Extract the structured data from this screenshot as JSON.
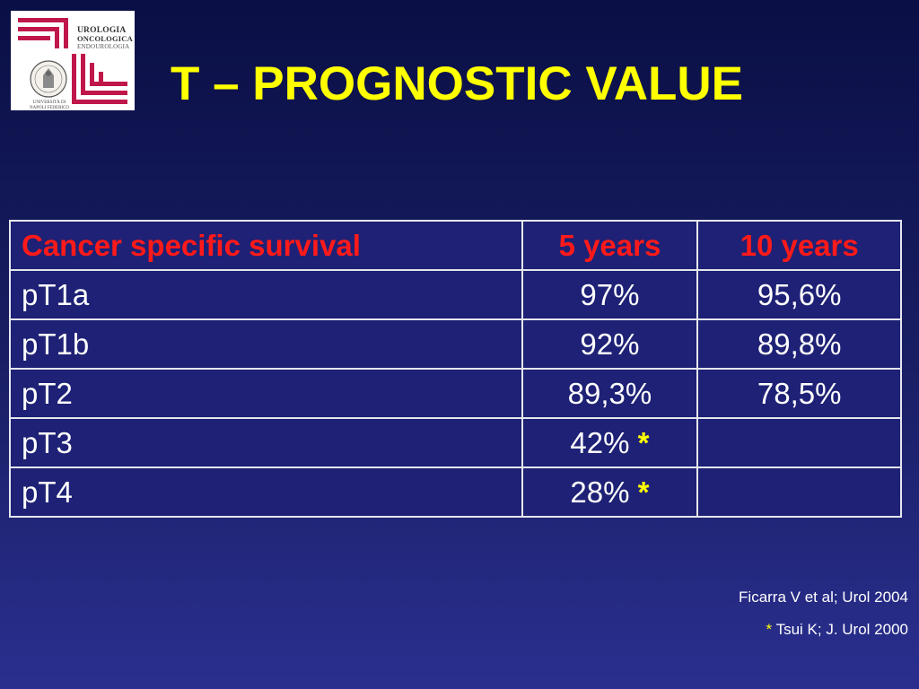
{
  "logo": {
    "line1": "UROLOGIA",
    "line2": "ONCOLOGICA",
    "line3": "ENDOUROLOGIA",
    "seal_caption": "UNIVERSITÀ DI NAPOLI FEDERICO II",
    "brand_color": "#c0174a"
  },
  "title": "T – PROGNOSTIC VALUE",
  "table": {
    "headers": [
      "Cancer specific survival",
      "5 years",
      "10 years"
    ],
    "rows": [
      {
        "stage": "pT1a",
        "five_years": "97%",
        "ten_years": "95,6%",
        "marker": ""
      },
      {
        "stage": "pT1b",
        "five_years": "92%",
        "ten_years": "89,8%",
        "marker": ""
      },
      {
        "stage": "pT2",
        "five_years": "89,3%",
        "ten_years": "78,5%",
        "marker": ""
      },
      {
        "stage": "pT3",
        "five_years": "42%",
        "ten_years": "",
        "marker": "*"
      },
      {
        "stage": "pT4",
        "five_years": "28%",
        "ten_years": "",
        "marker": "*"
      }
    ]
  },
  "references": {
    "ref1": "Ficarra V et al; Urol 2004",
    "ref2_marker": "*",
    "ref2": "Tsui K; J. Urol 2000"
  },
  "colors": {
    "title": "#ffff00",
    "header_text": "#ff1a1a",
    "body_text": "#ffffff",
    "background": "#1a1f66"
  }
}
